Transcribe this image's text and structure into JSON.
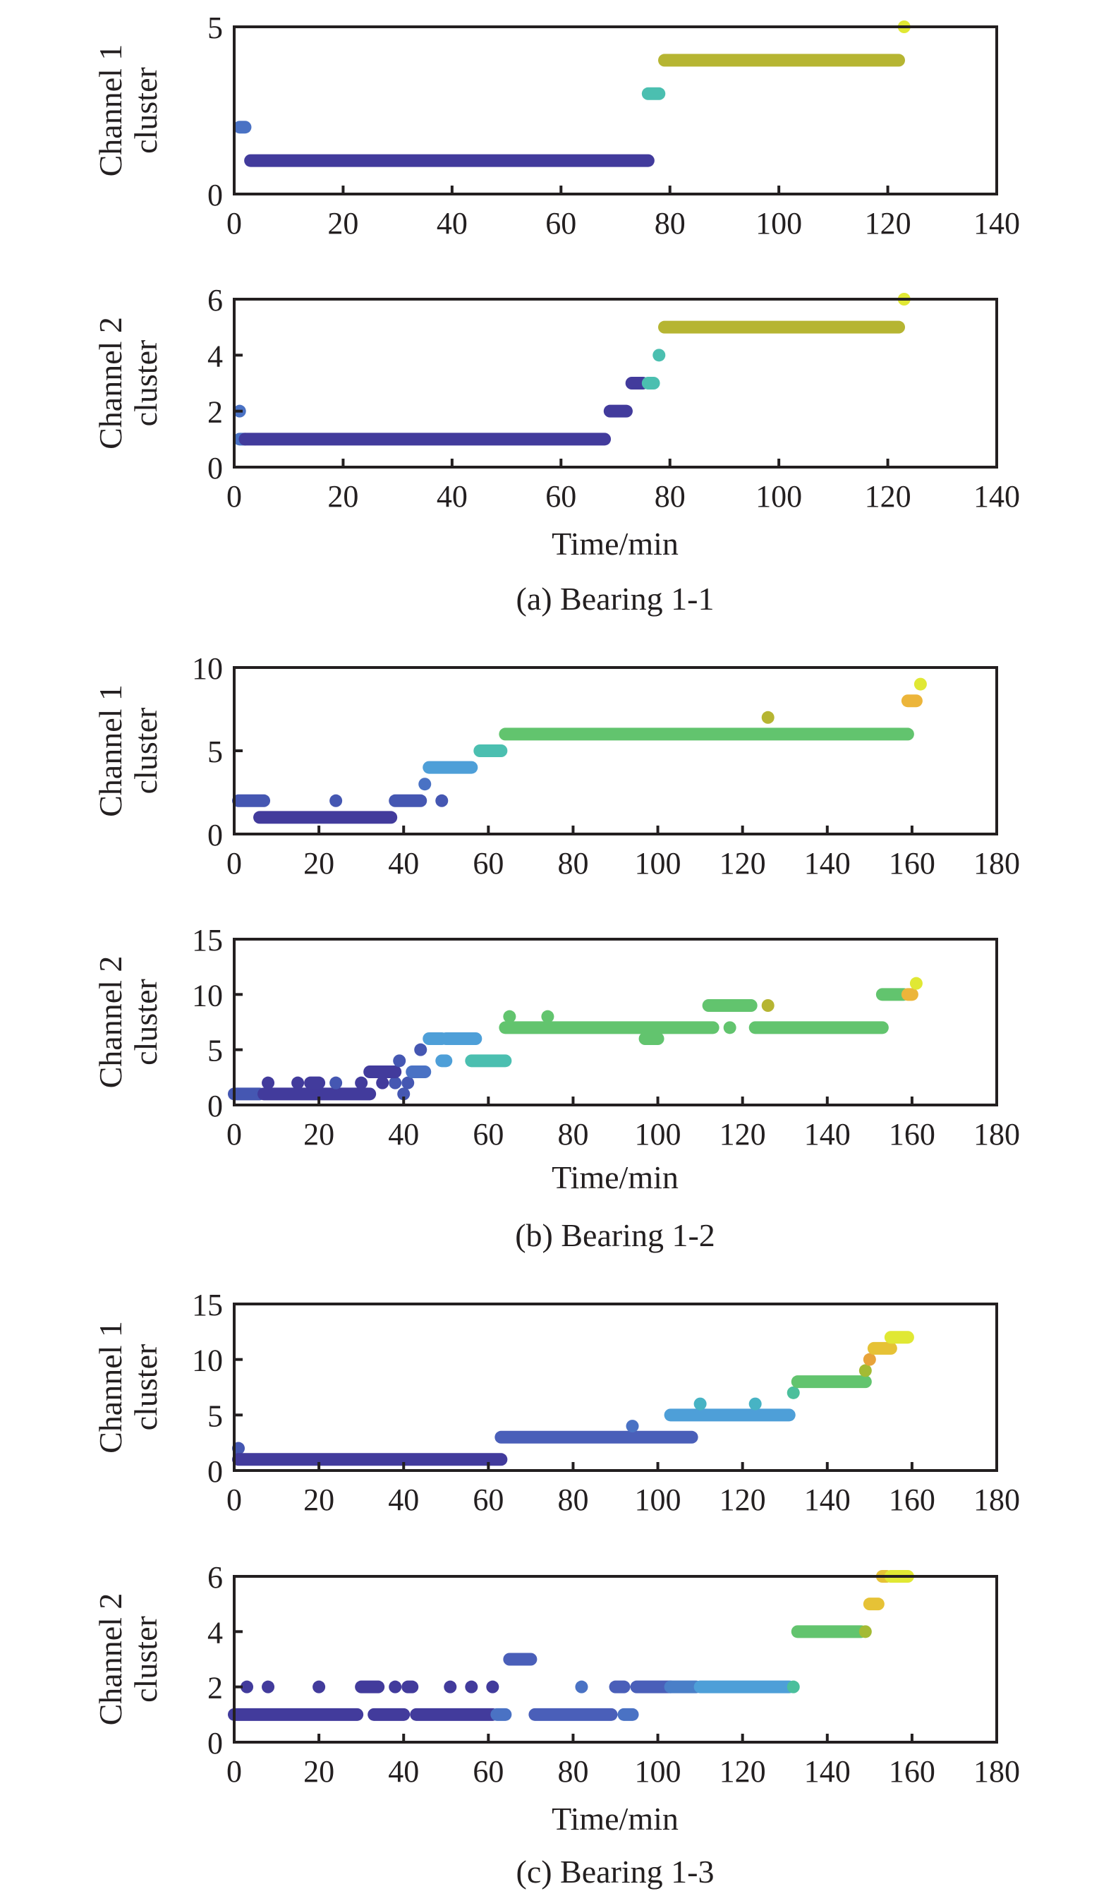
{
  "chart_data": [
    {
      "type": "scatter",
      "group": "a",
      "caption": "(a) Bearing 1-1",
      "ylabel": [
        "Channel 1",
        "cluster"
      ],
      "xlabel": "",
      "xlim": [
        0,
        140
      ],
      "ylim": [
        0,
        5
      ],
      "xticks": [
        "0",
        "20",
        "40",
        "60",
        "80",
        "100",
        "120",
        "140"
      ],
      "yticks": [
        "0",
        "5"
      ],
      "ytick_values": [
        0,
        5
      ],
      "segments": [
        {
          "y": 2,
          "x0": 1,
          "x1": 2,
          "color": "#4a72c4"
        },
        {
          "y": 1,
          "x0": 3,
          "x1": 76,
          "color": "#423b9c"
        },
        {
          "y": 3,
          "x0": 76,
          "x1": 78,
          "color": "#4bbfb0"
        },
        {
          "y": 4,
          "x0": 79,
          "x1": 122,
          "color": "#b6b532"
        },
        {
          "y": 5,
          "x0": 123,
          "x1": 123,
          "color": "#e0e834"
        }
      ]
    },
    {
      "type": "scatter",
      "group": "a",
      "caption": "",
      "ylabel": [
        "Channel 2",
        "cluster"
      ],
      "xlabel": "Time/min",
      "xlim": [
        0,
        140
      ],
      "ylim": [
        0,
        6
      ],
      "xticks": [
        "0",
        "20",
        "40",
        "60",
        "80",
        "100",
        "120",
        "140"
      ],
      "yticks": [
        "0",
        "2",
        "4",
        "6"
      ],
      "ytick_values": [
        0,
        2,
        4,
        6
      ],
      "segments": [
        {
          "y": 2,
          "x0": 1,
          "x1": 1,
          "color": "#4a72c4"
        },
        {
          "y": 1,
          "x0": 1,
          "x1": 2,
          "color": "#4a72c4"
        },
        {
          "y": 1,
          "x0": 2,
          "x1": 68,
          "color": "#423b9c"
        },
        {
          "y": 2,
          "x0": 69,
          "x1": 72,
          "color": "#423b9c"
        },
        {
          "y": 3,
          "x0": 73,
          "x1": 75,
          "color": "#423b9c"
        },
        {
          "y": 3,
          "x0": 76,
          "x1": 77,
          "color": "#4bbfb0"
        },
        {
          "y": 4,
          "x0": 78,
          "x1": 78,
          "color": "#4bbfb0"
        },
        {
          "y": 5,
          "x0": 79,
          "x1": 122,
          "color": "#b6b532"
        },
        {
          "y": 6,
          "x0": 123,
          "x1": 123,
          "color": "#e0e834"
        }
      ]
    },
    {
      "type": "scatter",
      "group": "b",
      "caption": "(b) Bearing 1-2",
      "ylabel": [
        "Channel 1",
        "cluster"
      ],
      "xlabel": "",
      "xlim": [
        0,
        180
      ],
      "ylim": [
        0,
        10
      ],
      "xticks": [
        "0",
        "20",
        "40",
        "60",
        "80",
        "100",
        "120",
        "140",
        "160",
        "180"
      ],
      "yticks": [
        "0",
        "5",
        "10"
      ],
      "ytick_values": [
        0,
        5,
        10
      ],
      "segments": [
        {
          "y": 2,
          "x0": 1,
          "x1": 7,
          "color": "#4557b2"
        },
        {
          "y": 1,
          "x0": 6,
          "x1": 37,
          "color": "#423b9c"
        },
        {
          "y": 2,
          "x0": 24,
          "x1": 24,
          "color": "#4557b2"
        },
        {
          "y": 2,
          "x0": 38,
          "x1": 44,
          "color": "#4557b2"
        },
        {
          "y": 3,
          "x0": 45,
          "x1": 45,
          "color": "#4a72c4"
        },
        {
          "y": 2,
          "x0": 49,
          "x1": 49,
          "color": "#4557b2"
        },
        {
          "y": 4,
          "x0": 46,
          "x1": 56,
          "color": "#4e9fd8"
        },
        {
          "y": 5,
          "x0": 58,
          "x1": 63,
          "color": "#4bbfb0"
        },
        {
          "y": 6,
          "x0": 64,
          "x1": 159,
          "color": "#62c46e"
        },
        {
          "y": 7,
          "x0": 126,
          "x1": 126,
          "color": "#b6b532"
        },
        {
          "y": 8,
          "x0": 159,
          "x1": 161,
          "color": "#ecb53a"
        },
        {
          "y": 9,
          "x0": 162,
          "x1": 162,
          "color": "#e0e834"
        }
      ]
    },
    {
      "type": "scatter",
      "group": "b",
      "caption": "",
      "ylabel": [
        "Channel 2",
        "cluster"
      ],
      "xlabel": "Time/min",
      "xlim": [
        0,
        180
      ],
      "ylim": [
        0,
        15
      ],
      "xticks": [
        "0",
        "20",
        "40",
        "60",
        "80",
        "100",
        "120",
        "140",
        "160",
        "180"
      ],
      "yticks": [
        "0",
        "5",
        "10",
        "15"
      ],
      "ytick_values": [
        0,
        5,
        10,
        15
      ],
      "segments": [
        {
          "y": 1,
          "x0": 0,
          "x1": 6,
          "color": "#4557b2"
        },
        {
          "y": 1,
          "x0": 7,
          "x1": 32,
          "color": "#423b9c"
        },
        {
          "y": 1,
          "x0": 40,
          "x1": 40,
          "color": "#4557b2"
        },
        {
          "y": 2,
          "x0": 8,
          "x1": 8,
          "color": "#423b9c"
        },
        {
          "y": 2,
          "x0": 15,
          "x1": 15,
          "color": "#423b9c"
        },
        {
          "y": 2,
          "x0": 18,
          "x1": 20,
          "color": "#423b9c"
        },
        {
          "y": 2,
          "x0": 24,
          "x1": 24,
          "color": "#4557b2"
        },
        {
          "y": 2,
          "x0": 30,
          "x1": 30,
          "color": "#423b9c"
        },
        {
          "y": 2,
          "x0": 35,
          "x1": 35,
          "color": "#423b9c"
        },
        {
          "y": 2,
          "x0": 38,
          "x1": 38,
          "color": "#4557b2"
        },
        {
          "y": 2,
          "x0": 41,
          "x1": 41,
          "color": "#4557b2"
        },
        {
          "y": 3,
          "x0": 32,
          "x1": 38,
          "color": "#423b9c"
        },
        {
          "y": 3,
          "x0": 42,
          "x1": 45,
          "color": "#4a72c4"
        },
        {
          "y": 4,
          "x0": 39,
          "x1": 39,
          "color": "#4557b2"
        },
        {
          "y": 4,
          "x0": 49,
          "x1": 50,
          "color": "#4e9fd8"
        },
        {
          "y": 4,
          "x0": 56,
          "x1": 64,
          "color": "#4bbfb0"
        },
        {
          "y": 5,
          "x0": 44,
          "x1": 44,
          "color": "#4557b2"
        },
        {
          "y": 6,
          "x0": 46,
          "x1": 49,
          "color": "#4e9fd8"
        },
        {
          "y": 6,
          "x0": 50,
          "x1": 57,
          "color": "#4e9fd8"
        },
        {
          "y": 7,
          "x0": 64,
          "x1": 113,
          "color": "#62c46e"
        },
        {
          "y": 7,
          "x0": 117,
          "x1": 117,
          "color": "#62c46e"
        },
        {
          "y": 7,
          "x0": 123,
          "x1": 153,
          "color": "#62c46e"
        },
        {
          "y": 8,
          "x0": 65,
          "x1": 65,
          "color": "#62c46e"
        },
        {
          "y": 8,
          "x0": 74,
          "x1": 74,
          "color": "#62c46e"
        },
        {
          "y": 6,
          "x0": 97,
          "x1": 100,
          "color": "#62c46e"
        },
        {
          "y": 9,
          "x0": 112,
          "x1": 122,
          "color": "#62c46e"
        },
        {
          "y": 9,
          "x0": 126,
          "x1": 126,
          "color": "#b6b532"
        },
        {
          "y": 10,
          "x0": 153,
          "x1": 158,
          "color": "#62c46e"
        },
        {
          "y": 10,
          "x0": 159,
          "x1": 160,
          "color": "#ecb53a"
        },
        {
          "y": 11,
          "x0": 161,
          "x1": 161,
          "color": "#e0e834"
        }
      ]
    },
    {
      "type": "scatter",
      "group": "c",
      "caption": "(c) Bearing 1-3",
      "ylabel": [
        "Channel 1",
        "cluster"
      ],
      "xlabel": "",
      "xlim": [
        0,
        180
      ],
      "ylim": [
        0,
        15
      ],
      "xticks": [
        "0",
        "20",
        "40",
        "60",
        "80",
        "100",
        "120",
        "140",
        "160",
        "180"
      ],
      "yticks": [
        "0",
        "5",
        "10",
        "15"
      ],
      "ytick_values": [
        0,
        5,
        10,
        15
      ],
      "segments": [
        {
          "y": 2,
          "x0": 1,
          "x1": 1,
          "color": "#4557b2"
        },
        {
          "y": 1,
          "x0": 1,
          "x1": 63,
          "color": "#423b9c"
        },
        {
          "y": 3,
          "x0": 63,
          "x1": 108,
          "color": "#4a5fb9"
        },
        {
          "y": 4,
          "x0": 94,
          "x1": 94,
          "color": "#4a72c4"
        },
        {
          "y": 5,
          "x0": 103,
          "x1": 131,
          "color": "#4e9fd8"
        },
        {
          "y": 6,
          "x0": 110,
          "x1": 110,
          "color": "#47b3c4"
        },
        {
          "y": 6,
          "x0": 123,
          "x1": 123,
          "color": "#47b3c4"
        },
        {
          "y": 7,
          "x0": 132,
          "x1": 132,
          "color": "#4bbf9c"
        },
        {
          "y": 8,
          "x0": 133,
          "x1": 149,
          "color": "#62c46e"
        },
        {
          "y": 9,
          "x0": 149,
          "x1": 149,
          "color": "#a4bb34"
        },
        {
          "y": 10,
          "x0": 150,
          "x1": 150,
          "color": "#e8a33a"
        },
        {
          "y": 11,
          "x0": 151,
          "x1": 155,
          "color": "#e6c236"
        },
        {
          "y": 12,
          "x0": 155,
          "x1": 159,
          "color": "#e0e834"
        }
      ]
    },
    {
      "type": "scatter",
      "group": "c",
      "caption": "",
      "ylabel": [
        "Channel 2",
        "cluster"
      ],
      "xlabel": "Time/min",
      "xlim": [
        0,
        180
      ],
      "ylim": [
        0,
        6
      ],
      "xticks": [
        "0",
        "20",
        "40",
        "60",
        "80",
        "100",
        "120",
        "140",
        "160",
        "180"
      ],
      "yticks": [
        "0",
        "2",
        "4",
        "6"
      ],
      "ytick_values": [
        0,
        2,
        4,
        6
      ],
      "segments": [
        {
          "y": 1,
          "x0": 0,
          "x1": 29,
          "color": "#423b9c"
        },
        {
          "y": 1,
          "x0": 33,
          "x1": 40,
          "color": "#423b9c"
        },
        {
          "y": 1,
          "x0": 43,
          "x1": 61,
          "color": "#423b9c"
        },
        {
          "y": 1,
          "x0": 62,
          "x1": 64,
          "color": "#4a72c4"
        },
        {
          "y": 1,
          "x0": 71,
          "x1": 89,
          "color": "#4a5fb9"
        },
        {
          "y": 1,
          "x0": 92,
          "x1": 94,
          "color": "#4a72c4"
        },
        {
          "y": 2,
          "x0": 3,
          "x1": 3,
          "color": "#423b9c"
        },
        {
          "y": 2,
          "x0": 8,
          "x1": 8,
          "color": "#423b9c"
        },
        {
          "y": 2,
          "x0": 20,
          "x1": 20,
          "color": "#423b9c"
        },
        {
          "y": 2,
          "x0": 30,
          "x1": 34,
          "color": "#423b9c"
        },
        {
          "y": 2,
          "x0": 38,
          "x1": 38,
          "color": "#423b9c"
        },
        {
          "y": 2,
          "x0": 41,
          "x1": 42,
          "color": "#423b9c"
        },
        {
          "y": 2,
          "x0": 51,
          "x1": 51,
          "color": "#423b9c"
        },
        {
          "y": 2,
          "x0": 56,
          "x1": 56,
          "color": "#423b9c"
        },
        {
          "y": 2,
          "x0": 61,
          "x1": 61,
          "color": "#423b9c"
        },
        {
          "y": 2,
          "x0": 82,
          "x1": 82,
          "color": "#4a72c4"
        },
        {
          "y": 2,
          "x0": 90,
          "x1": 92,
          "color": "#4a5fb9"
        },
        {
          "y": 2,
          "x0": 95,
          "x1": 103,
          "color": "#4a5fb9"
        },
        {
          "y": 2,
          "x0": 103,
          "x1": 109,
          "color": "#4a7fc8"
        },
        {
          "y": 2,
          "x0": 110,
          "x1": 131,
          "color": "#4e9fd8"
        },
        {
          "y": 2,
          "x0": 132,
          "x1": 132,
          "color": "#4bbf9c"
        },
        {
          "y": 3,
          "x0": 65,
          "x1": 70,
          "color": "#4a5fb9"
        },
        {
          "y": 4,
          "x0": 133,
          "x1": 148,
          "color": "#62c46e"
        },
        {
          "y": 4,
          "x0": 149,
          "x1": 149,
          "color": "#a4bb34"
        },
        {
          "y": 5,
          "x0": 150,
          "x1": 152,
          "color": "#e6c236"
        },
        {
          "y": 6,
          "x0": 153,
          "x1": 154,
          "color": "#e6c236"
        },
        {
          "y": 6,
          "x0": 155,
          "x1": 159,
          "color": "#e0e834"
        }
      ]
    }
  ]
}
